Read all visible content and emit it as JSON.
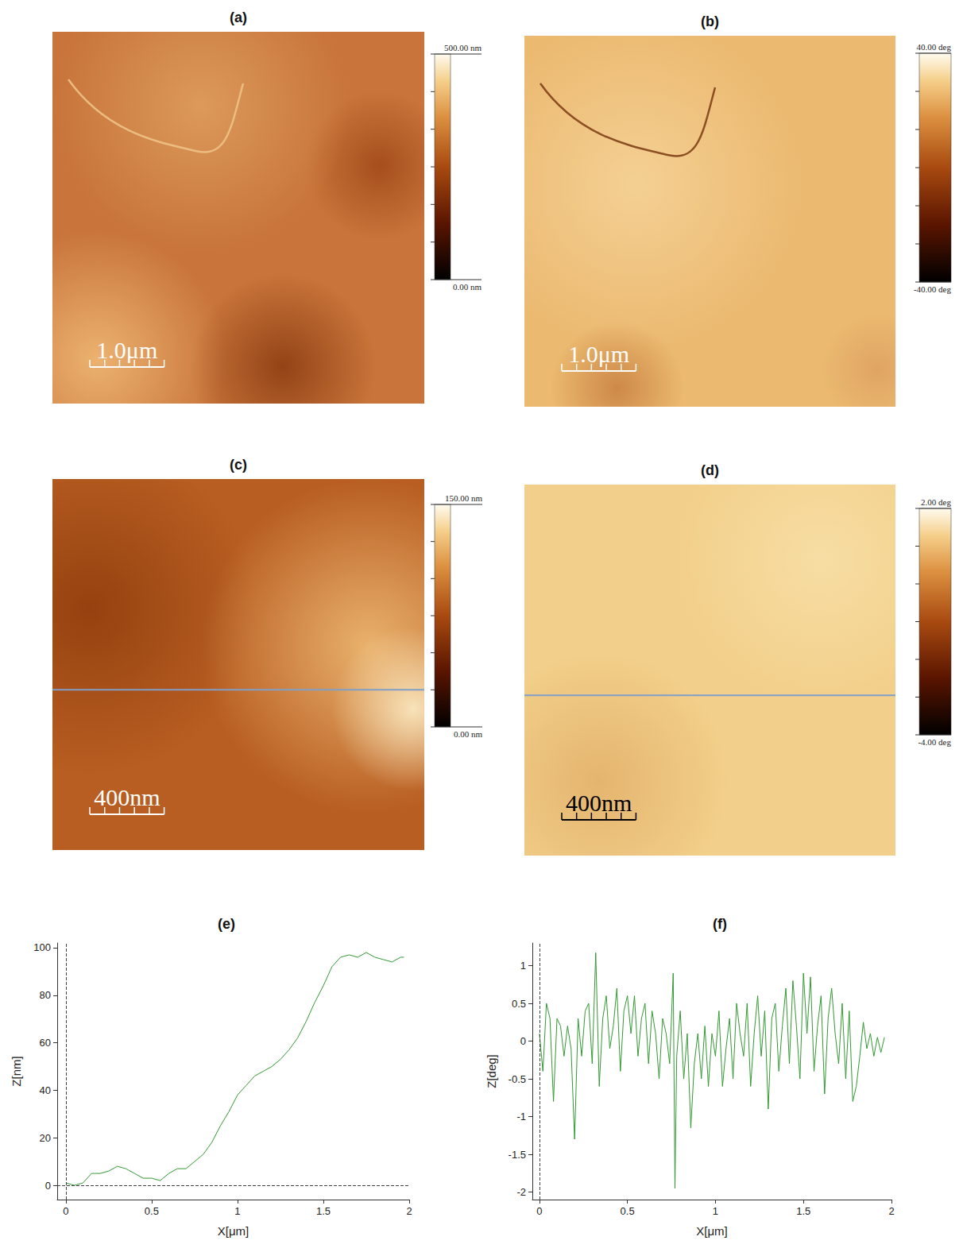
{
  "images": [
    {
      "title": "(a)",
      "colorbar": {
        "ticks": [
          {
            "value": 0,
            "label": "0.00 nm"
          },
          {
            "value": 500,
            "label": "500.00 nm"
          }
        ]
      },
      "scan_size": 5,
      "scale_bar": {
        "label": "1.0μm",
        "length": 1.0,
        "color": "#ffffff"
      }
    },
    {
      "title": "(b)",
      "colorbar": {
        "ticks": [
          {
            "value": -40,
            "label": "-40.00 deg"
          },
          {
            "value": 40,
            "label": "40.00 deg"
          }
        ]
      },
      "scan_size": 5,
      "scale_bar": {
        "label": "1.0μm",
        "length": 1.0,
        "color": "#ffffff"
      }
    },
    {
      "title": "(c)",
      "colorbar": {
        "ticks": [
          {
            "value": 0,
            "label": "0.00 nm"
          },
          {
            "value": 150,
            "label": "150.00 nm"
          }
        ]
      },
      "scan_size": 2000,
      "scale_bar": {
        "label": "400nm",
        "length": 400,
        "color": "#ffffff"
      },
      "profile": {
        "color": "#7f9fc8"
      }
    },
    {
      "title": "(d)",
      "colorbar": {
        "ticks": [
          {
            "value": -4,
            "label": "-4.00 deg"
          },
          {
            "value": 2,
            "label": "2.00 deg"
          }
        ]
      },
      "scan_size": 2000,
      "scale_bar": {
        "label": "400nm",
        "length": 400,
        "color": "#000000"
      },
      "profile": {
        "color": "#7f9fc8"
      }
    }
  ],
  "chart_data": [
    {
      "type": "line",
      "title": "(e)",
      "x_label": "X[μm]",
      "y_label": "Z[nm]",
      "x": [
        0,
        0.05,
        0.1,
        0.15,
        0.2,
        0.25,
        0.3,
        0.35,
        0.4,
        0.45,
        0.5,
        0.55,
        0.6,
        0.65,
        0.7,
        0.75,
        0.8,
        0.85,
        0.9,
        0.95,
        1.0,
        1.05,
        1.1,
        1.15,
        1.2,
        1.25,
        1.3,
        1.35,
        1.4,
        1.45,
        1.5,
        1.55,
        1.6,
        1.65,
        1.7,
        1.75,
        1.8,
        1.85,
        1.9,
        1.95,
        1.97
      ],
      "values": [
        1,
        0,
        1,
        5,
        5,
        6,
        8,
        7,
        5,
        3,
        3,
        2,
        5,
        7,
        7,
        10,
        13,
        18,
        25,
        31,
        38,
        42,
        46,
        48,
        50,
        53,
        57,
        62,
        69,
        77,
        84,
        92,
        96,
        97,
        96,
        98,
        96,
        95,
        94,
        96,
        96
      ],
      "color": "#339933",
      "xlim": [
        -0.05,
        2
      ],
      "xticks": [
        0,
        0.5,
        1,
        1.5,
        2
      ],
      "ylim": [
        -6,
        102
      ],
      "yticks": [
        0,
        20,
        40,
        60,
        80,
        100
      ],
      "grid": false
    },
    {
      "type": "line",
      "title": "(f)",
      "x_label": "X[μm]",
      "y_label": "Z[deg]",
      "x": [
        0,
        0.02,
        0.04,
        0.06,
        0.08,
        0.1,
        0.12,
        0.14,
        0.16,
        0.18,
        0.2,
        0.22,
        0.24,
        0.26,
        0.28,
        0.3,
        0.32,
        0.34,
        0.36,
        0.38,
        0.4,
        0.42,
        0.44,
        0.46,
        0.48,
        0.5,
        0.52,
        0.54,
        0.56,
        0.58,
        0.6,
        0.62,
        0.64,
        0.66,
        0.68,
        0.7,
        0.72,
        0.74,
        0.76,
        0.77,
        0.78,
        0.8,
        0.82,
        0.84,
        0.86,
        0.88,
        0.9,
        0.92,
        0.94,
        0.96,
        0.98,
        1.0,
        1.02,
        1.04,
        1.06,
        1.08,
        1.1,
        1.12,
        1.14,
        1.16,
        1.18,
        1.2,
        1.22,
        1.24,
        1.26,
        1.28,
        1.3,
        1.32,
        1.34,
        1.36,
        1.38,
        1.4,
        1.42,
        1.44,
        1.46,
        1.48,
        1.5,
        1.52,
        1.54,
        1.56,
        1.58,
        1.6,
        1.62,
        1.64,
        1.66,
        1.68,
        1.7,
        1.72,
        1.74,
        1.76,
        1.78,
        1.8,
        1.82,
        1.84,
        1.86,
        1.88,
        1.9,
        1.92,
        1.94,
        1.96
      ],
      "values": [
        0.1,
        -0.4,
        0.5,
        0.3,
        -0.8,
        0.3,
        0.2,
        -0.2,
        0.2,
        -0.1,
        -1.3,
        0.3,
        -0.2,
        0.4,
        0.5,
        -0.3,
        1.17,
        -0.6,
        0.3,
        0.6,
        -0.1,
        0.2,
        0.7,
        -0.4,
        0.4,
        0.6,
        0.1,
        0.6,
        -0.2,
        0.3,
        0.5,
        -0.3,
        0.4,
        0.1,
        -0.5,
        0.3,
        0.1,
        -0.3,
        0.9,
        -1.95,
        -0.2,
        0.4,
        -0.5,
        0.1,
        -1.15,
        -0.3,
        0.1,
        -0.5,
        0.2,
        -0.6,
        0.1,
        -0.2,
        0.4,
        -0.6,
        -0.1,
        0.3,
        -0.5,
        0.5,
        0.1,
        -0.2,
        0.5,
        -0.6,
        0.1,
        0.6,
        -0.2,
        0.4,
        -0.9,
        0.3,
        0.5,
        -0.4,
        0.2,
        0.7,
        -0.3,
        0.8,
        0.2,
        -0.5,
        0.9,
        0.1,
        0.85,
        -0.4,
        0.2,
        0.6,
        -0.7,
        0.3,
        0.7,
        0.1,
        -0.3,
        0.5,
        -0.5,
        0.4,
        -0.8,
        -0.6,
        -0.2,
        0.25,
        -0.1,
        0.1,
        -0.2,
        0.05,
        -0.15,
        0.05
      ],
      "color": "#339933",
      "xlim": [
        -0.04,
        2
      ],
      "xticks": [
        0,
        0.5,
        1,
        1.5,
        2
      ],
      "ylim": [
        -2.1,
        1.3
      ],
      "yticks": [
        -2,
        -1.5,
        -1,
        -0.5,
        0,
        0.5,
        1
      ],
      "grid": false
    }
  ]
}
